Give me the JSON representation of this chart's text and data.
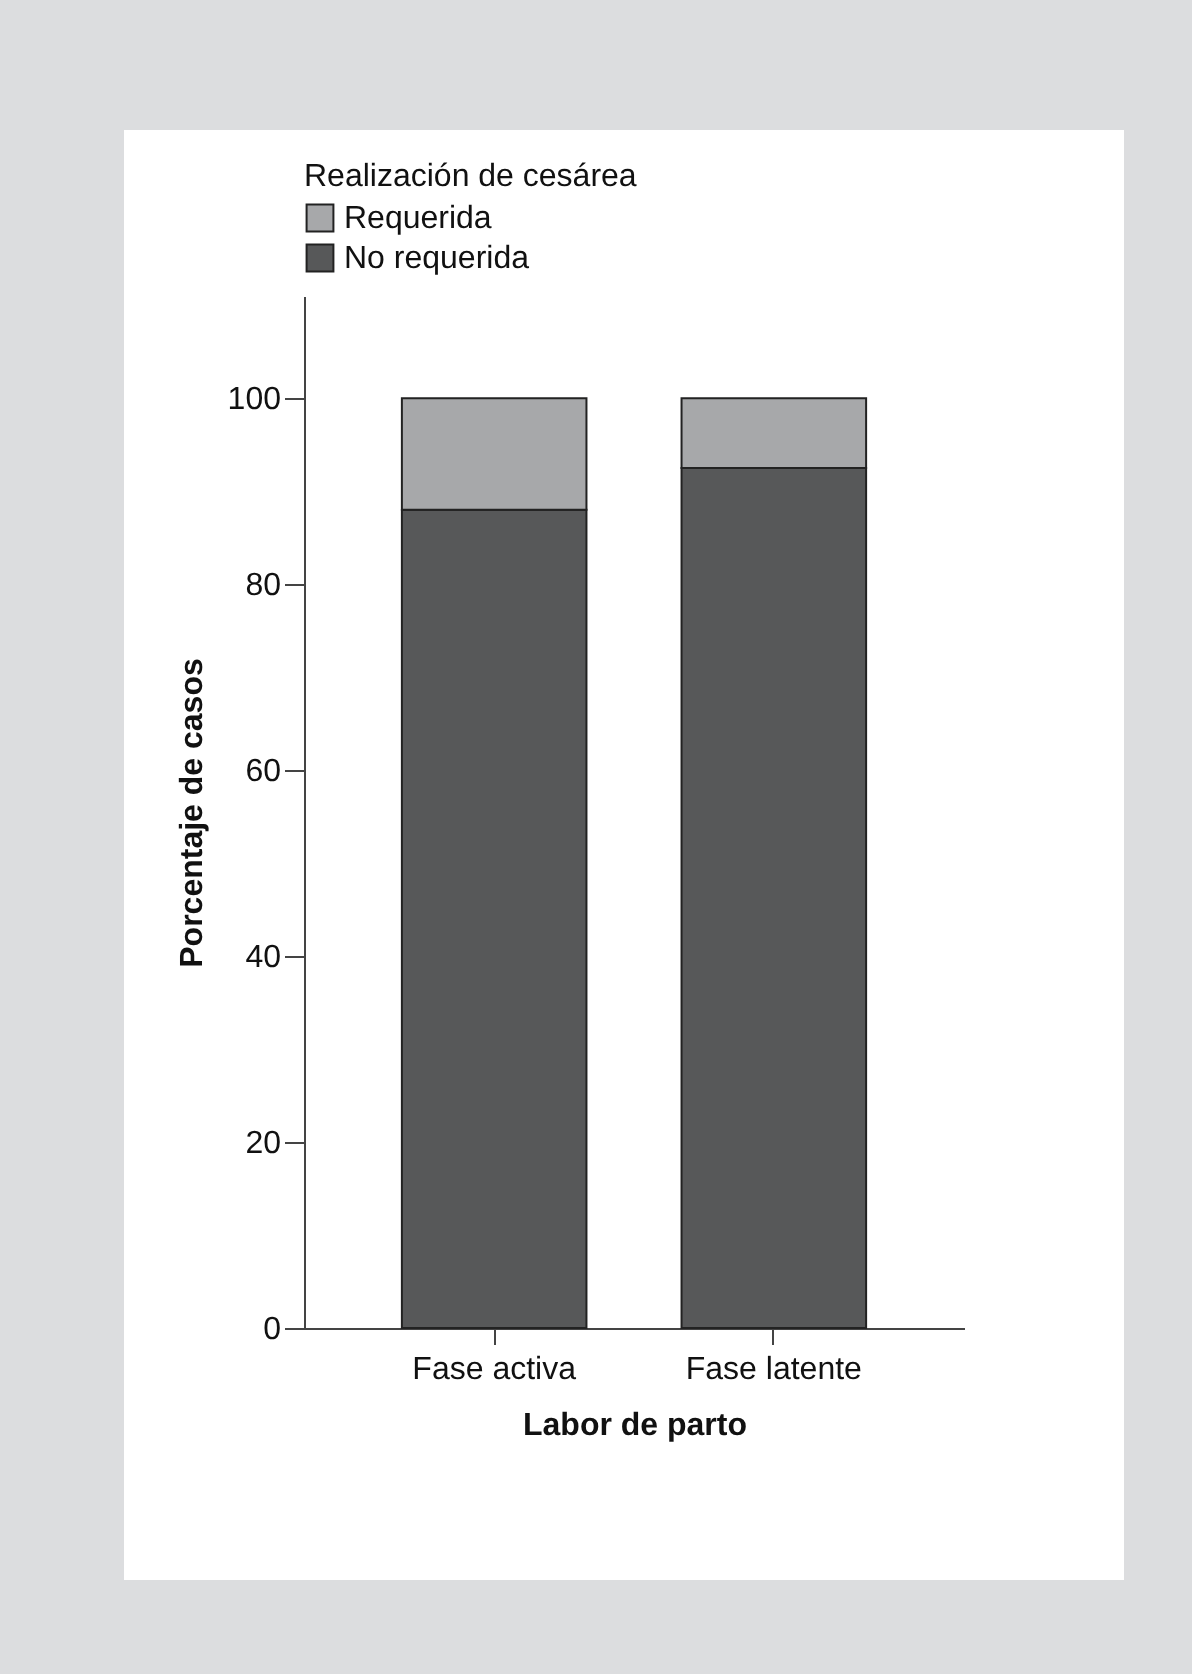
{
  "chart_data": {
    "type": "bar",
    "stacked": true,
    "xlabel": "Labor de parto",
    "ylabel": "Porcentaje de casos",
    "legend_title": "Realización de cesárea",
    "legend": "top",
    "categories": [
      "Fase activa",
      "Fase latente"
    ],
    "series": [
      {
        "name": "No requerida",
        "color": "#575859",
        "values": [
          88,
          92.5
        ]
      },
      {
        "name": "Requerida",
        "color": "#a7a8aa",
        "values": [
          12,
          7.5
        ]
      }
    ],
    "ylim": [
      0,
      111
    ],
    "yticks": [
      0,
      20,
      40,
      60,
      80,
      100
    ],
    "grid": false
  }
}
